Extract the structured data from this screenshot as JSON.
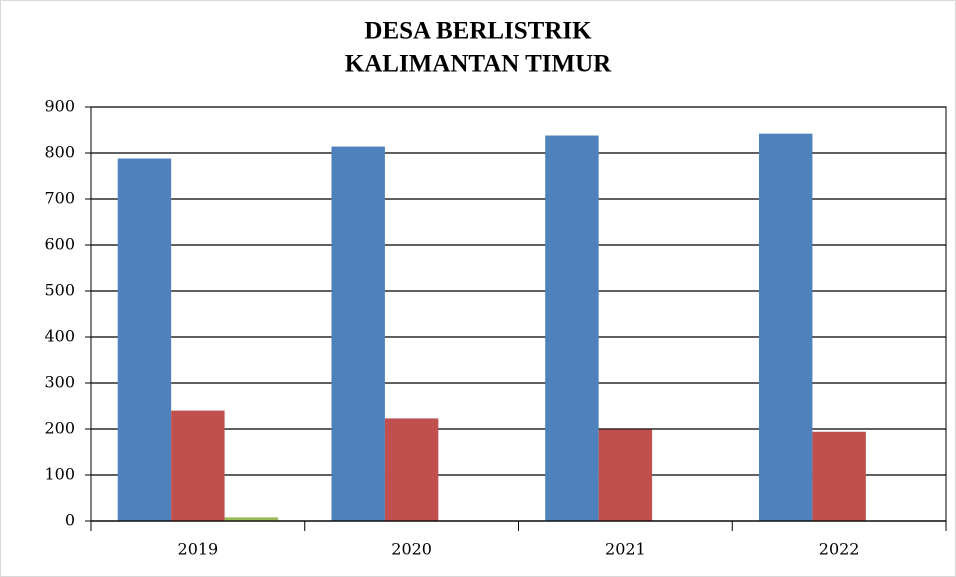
{
  "chart_data": {
    "type": "bar",
    "title": [
      "DESA BERLISTRIK",
      "KALIMANTAN TIMUR"
    ],
    "categories": [
      "2019",
      "2020",
      "2021",
      "2022"
    ],
    "series": [
      {
        "color": "#4f81bd",
        "values": [
          788,
          814,
          838,
          842
        ]
      },
      {
        "color": "#c0504d",
        "values": [
          240,
          223,
          199,
          194
        ]
      },
      {
        "color": "#9bbb59",
        "values": [
          8,
          0,
          0,
          0
        ]
      }
    ],
    "ylim": [
      0,
      900
    ],
    "yticks": [
      0,
      100,
      200,
      300,
      400,
      500,
      600,
      700,
      800,
      900
    ],
    "grid": true
  }
}
